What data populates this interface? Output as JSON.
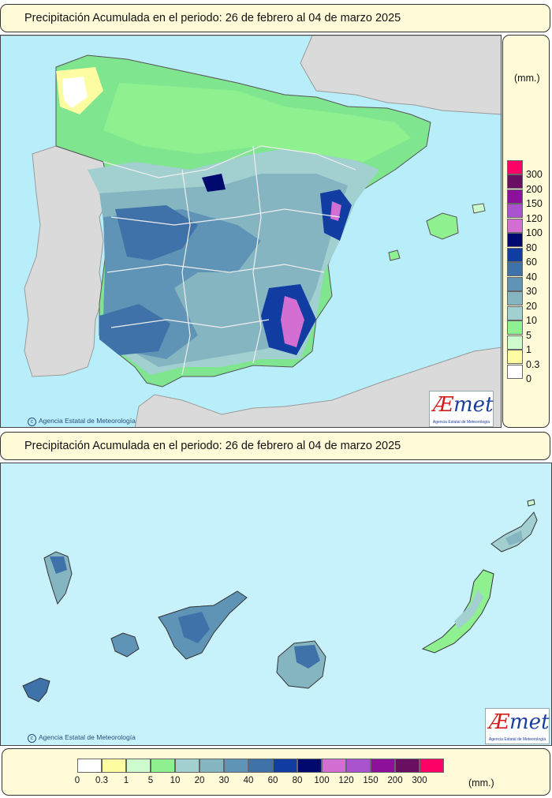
{
  "titles": {
    "peninsula": "Precipitación Acumulada en el periodo: 26 de febrero al 04 de marzo 2025",
    "canarias": "Precipitación Acumulada en el periodo: 26 de febrero al 04 de marzo 2025"
  },
  "unit_label": "(mm.)",
  "credit": "Agencia Estatal de Meteorología",
  "logo": {
    "brand": "AEmet",
    "subtitle": "Agencia Estatal de Meteorología"
  },
  "legend": [
    {
      "label": "0",
      "color": "#ffffff"
    },
    {
      "label": "0.3",
      "color": "#fdfca0"
    },
    {
      "label": "1",
      "color": "#cdfbcd"
    },
    {
      "label": "5",
      "color": "#8ff08f"
    },
    {
      "label": "10",
      "color": "#a2cfcf"
    },
    {
      "label": "20",
      "color": "#86b5c2"
    },
    {
      "label": "30",
      "color": "#5f94b6"
    },
    {
      "label": "40",
      "color": "#3f72a8"
    },
    {
      "label": "60",
      "color": "#113da3"
    },
    {
      "label": "80",
      "color": "#000a6e"
    },
    {
      "label": "100",
      "color": "#d36fd3"
    },
    {
      "label": "120",
      "color": "#a953cf"
    },
    {
      "label": "150",
      "color": "#8c1099"
    },
    {
      "label": "200",
      "color": "#690f62"
    },
    {
      "label": "300",
      "color": "#ff0066"
    }
  ]
}
